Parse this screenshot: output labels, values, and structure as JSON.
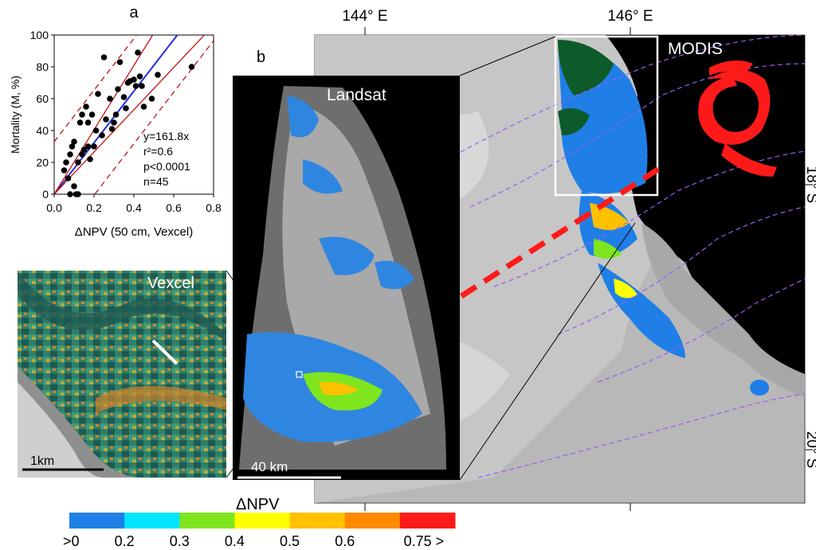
{
  "panel_a": {
    "letter": "a",
    "chart_data": {
      "type": "scatter",
      "xlabel": "ΔNPV (50 cm, Vexcel)",
      "ylabel": "Mortality (M, %)",
      "xlim": [
        0,
        0.8
      ],
      "ylim": [
        0,
        100
      ],
      "xticks": [
        "0.0",
        "0.2",
        "0.4",
        "0.6",
        "0.8"
      ],
      "yticks": [
        "0",
        "20",
        "40",
        "60",
        "80",
        "100"
      ],
      "points": [
        [
          0.05,
          15
        ],
        [
          0.06,
          20
        ],
        [
          0.07,
          10
        ],
        [
          0.08,
          25
        ],
        [
          0.08,
          0
        ],
        [
          0.09,
          30
        ],
        [
          0.1,
          33
        ],
        [
          0.1,
          5
        ],
        [
          0.11,
          0
        ],
        [
          0.12,
          20
        ],
        [
          0.12,
          0
        ],
        [
          0.13,
          45
        ],
        [
          0.14,
          50
        ],
        [
          0.14,
          25
        ],
        [
          0.15,
          28
        ],
        [
          0.16,
          55
        ],
        [
          0.17,
          45
        ],
        [
          0.17,
          30
        ],
        [
          0.18,
          22
        ],
        [
          0.19,
          50
        ],
        [
          0.2,
          30
        ],
        [
          0.21,
          40
        ],
        [
          0.22,
          63
        ],
        [
          0.24,
          37
        ],
        [
          0.25,
          86
        ],
        [
          0.26,
          47
        ],
        [
          0.28,
          60
        ],
        [
          0.29,
          41
        ],
        [
          0.3,
          45
        ],
        [
          0.31,
          50
        ],
        [
          0.32,
          66
        ],
        [
          0.33,
          83
        ],
        [
          0.35,
          61
        ],
        [
          0.36,
          54
        ],
        [
          0.37,
          70
        ],
        [
          0.38,
          71
        ],
        [
          0.4,
          72
        ],
        [
          0.41,
          68
        ],
        [
          0.42,
          89
        ],
        [
          0.43,
          74
        ],
        [
          0.44,
          68
        ],
        [
          0.45,
          55
        ],
        [
          0.49,
          60
        ],
        [
          0.52,
          75
        ],
        [
          0.69,
          80
        ]
      ],
      "fit_slope": 161.8,
      "annotations": [
        "y=161.8x",
        "r²=0.6",
        "p<0.0001",
        "n=45"
      ]
    }
  },
  "panel_b": {
    "letter": "b",
    "landsat_label": "Landsat",
    "modis_label": "MODIS",
    "vexcel_label": "Vexcel",
    "scale_landsat": "40 km",
    "scale_vexcel": "1km",
    "lon_labels": [
      "144° E",
      "146° E"
    ],
    "lat_labels": [
      "18° S",
      "20° S"
    ],
    "icon": "cyclone-icon"
  },
  "colorbar": {
    "title": "ΔNPV",
    "ticks": [
      ">0",
      "0.2",
      "0.3",
      "0.4",
      "0.5",
      "0.6",
      "0.75 >"
    ],
    "colors": [
      "#1f7fe6",
      "#00e5ff",
      "#7fe51f",
      "#ffff00",
      "#ffc000",
      "#ff8a00",
      "#ff1a1a"
    ]
  },
  "colors": {
    "cyclone": "#ff1a1a",
    "fit_line": "#1f2fd8",
    "confidence": "#c00000",
    "storm_track": "#9b5cf5"
  }
}
